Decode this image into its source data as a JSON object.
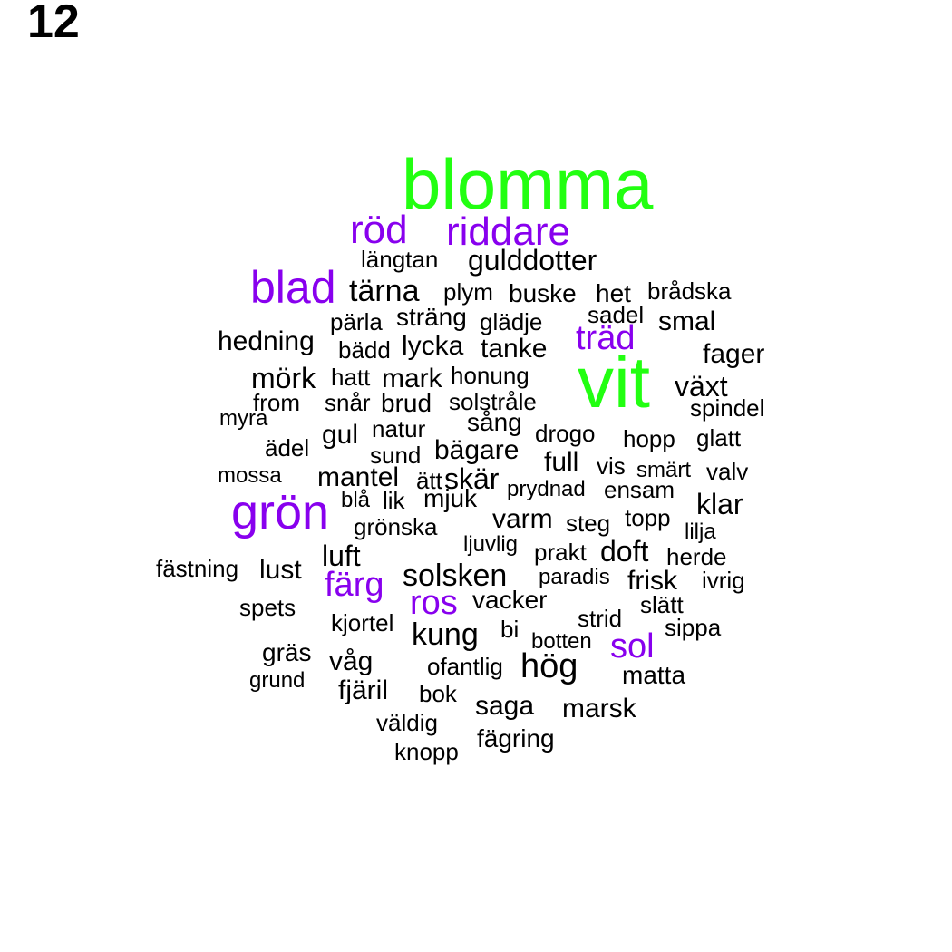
{
  "panel_label": "12",
  "colors": {
    "large": "#22ff11",
    "medium": "#8800ee",
    "small": "#000000"
  },
  "words": [
    {
      "text": "blomma",
      "color": "large"
    },
    {
      "text": "vit",
      "color": "large"
    },
    {
      "text": "röd",
      "color": "medium"
    },
    {
      "text": "riddare",
      "color": "medium"
    },
    {
      "text": "blad",
      "color": "medium"
    },
    {
      "text": "träd",
      "color": "medium"
    },
    {
      "text": "grön",
      "color": "medium"
    },
    {
      "text": "färg",
      "color": "medium"
    },
    {
      "text": "ros",
      "color": "medium"
    },
    {
      "text": "sol",
      "color": "medium"
    },
    {
      "text": "längtan",
      "color": "small"
    },
    {
      "text": "gulddotter",
      "color": "small"
    },
    {
      "text": "tärna",
      "color": "small"
    },
    {
      "text": "plym",
      "color": "small"
    },
    {
      "text": "buske",
      "color": "small"
    },
    {
      "text": "het",
      "color": "small"
    },
    {
      "text": "brådska",
      "color": "small"
    },
    {
      "text": "pärla",
      "color": "small"
    },
    {
      "text": "sträng",
      "color": "small"
    },
    {
      "text": "glädje",
      "color": "small"
    },
    {
      "text": "sadel",
      "color": "small"
    },
    {
      "text": "smal",
      "color": "small"
    },
    {
      "text": "hedning",
      "color": "small"
    },
    {
      "text": "bädd",
      "color": "small"
    },
    {
      "text": "lycka",
      "color": "small"
    },
    {
      "text": "tanke",
      "color": "small"
    },
    {
      "text": "fager",
      "color": "small"
    },
    {
      "text": "mörk",
      "color": "small"
    },
    {
      "text": "hatt",
      "color": "small"
    },
    {
      "text": "mark",
      "color": "small"
    },
    {
      "text": "honung",
      "color": "small"
    },
    {
      "text": "växt",
      "color": "small"
    },
    {
      "text": "from",
      "color": "small"
    },
    {
      "text": "snår",
      "color": "small"
    },
    {
      "text": "brud",
      "color": "small"
    },
    {
      "text": "solstråle",
      "color": "small"
    },
    {
      "text": "spindel",
      "color": "small"
    },
    {
      "text": "myra",
      "color": "small"
    },
    {
      "text": "gul",
      "color": "small"
    },
    {
      "text": "natur",
      "color": "small"
    },
    {
      "text": "sång",
      "color": "small"
    },
    {
      "text": "drogo",
      "color": "small"
    },
    {
      "text": "hopp",
      "color": "small"
    },
    {
      "text": "glatt",
      "color": "small"
    },
    {
      "text": "ädel",
      "color": "small"
    },
    {
      "text": "sund",
      "color": "small"
    },
    {
      "text": "bägare",
      "color": "small"
    },
    {
      "text": "full",
      "color": "small"
    },
    {
      "text": "vis",
      "color": "small"
    },
    {
      "text": "smärt",
      "color": "small"
    },
    {
      "text": "valv",
      "color": "small"
    },
    {
      "text": "mossa",
      "color": "small"
    },
    {
      "text": "mantel",
      "color": "small"
    },
    {
      "text": "ätt",
      "color": "small"
    },
    {
      "text": "skär",
      "color": "small"
    },
    {
      "text": "prydnad",
      "color": "small"
    },
    {
      "text": "ensam",
      "color": "small"
    },
    {
      "text": "klar",
      "color": "small"
    },
    {
      "text": "blå",
      "color": "small"
    },
    {
      "text": "lik",
      "color": "small"
    },
    {
      "text": "mjuk",
      "color": "small"
    },
    {
      "text": "varm",
      "color": "small"
    },
    {
      "text": "steg",
      "color": "small"
    },
    {
      "text": "topp",
      "color": "small"
    },
    {
      "text": "lilja",
      "color": "small"
    },
    {
      "text": "grönska",
      "color": "small"
    },
    {
      "text": "ljuvlig",
      "color": "small"
    },
    {
      "text": "prakt",
      "color": "small"
    },
    {
      "text": "doft",
      "color": "small"
    },
    {
      "text": "herde",
      "color": "small"
    },
    {
      "text": "fästning",
      "color": "small"
    },
    {
      "text": "lust",
      "color": "small"
    },
    {
      "text": "luft",
      "color": "small"
    },
    {
      "text": "solsken",
      "color": "small"
    },
    {
      "text": "paradis",
      "color": "small"
    },
    {
      "text": "frisk",
      "color": "small"
    },
    {
      "text": "ivrig",
      "color": "small"
    },
    {
      "text": "spets",
      "color": "small"
    },
    {
      "text": "vacker",
      "color": "small"
    },
    {
      "text": "slätt",
      "color": "small"
    },
    {
      "text": "kjortel",
      "color": "small"
    },
    {
      "text": "strid",
      "color": "small"
    },
    {
      "text": "sippa",
      "color": "small"
    },
    {
      "text": "kung",
      "color": "small"
    },
    {
      "text": "bi",
      "color": "small"
    },
    {
      "text": "botten",
      "color": "small"
    },
    {
      "text": "gräs",
      "color": "small"
    },
    {
      "text": "våg",
      "color": "small"
    },
    {
      "text": "ofantlig",
      "color": "small"
    },
    {
      "text": "hög",
      "color": "small"
    },
    {
      "text": "matta",
      "color": "small"
    },
    {
      "text": "grund",
      "color": "small"
    },
    {
      "text": "fjäril",
      "color": "small"
    },
    {
      "text": "bok",
      "color": "small"
    },
    {
      "text": "saga",
      "color": "small"
    },
    {
      "text": "marsk",
      "color": "small"
    },
    {
      "text": "väldig",
      "color": "small"
    },
    {
      "text": "fägring",
      "color": "small"
    },
    {
      "text": "knopp",
      "color": "small"
    }
  ]
}
